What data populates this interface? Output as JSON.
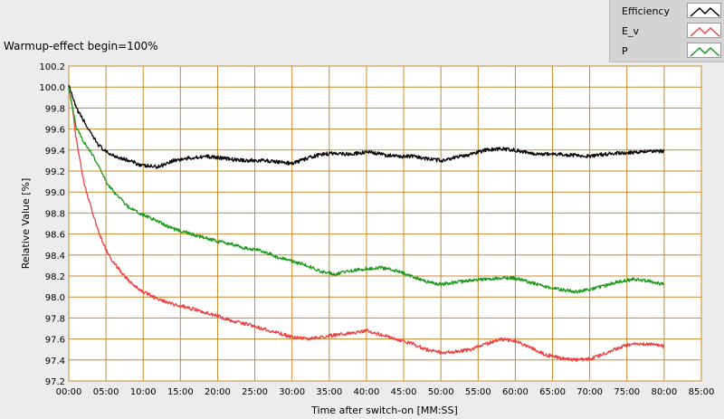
{
  "chart_data": {
    "type": "line",
    "title": "Warmup-effect begin=100%",
    "xlabel": "Time after switch-on [MM:SS]",
    "ylabel": "Relative Value [%]",
    "xlim": [
      0,
      85
    ],
    "ylim": [
      97.2,
      100.2
    ],
    "x_ticks": [
      "00:00",
      "05:00",
      "10:00",
      "15:00",
      "20:00",
      "25:00",
      "30:00",
      "35:00",
      "40:00",
      "45:00",
      "50:00",
      "55:00",
      "60:00",
      "65:00",
      "70:00",
      "75:00",
      "80:00",
      "85:00"
    ],
    "y_ticks": [
      "97.2",
      "97.4",
      "97.6",
      "97.8",
      "98.0",
      "98.2",
      "98.4",
      "98.6",
      "98.8",
      "99.0",
      "99.2",
      "99.4",
      "99.6",
      "99.8",
      "100.0",
      "100.2"
    ],
    "grid": true,
    "legend_position": "top-right",
    "series": [
      {
        "name": "Efficiency",
        "color": "#000000",
        "x": [
          0,
          0.5,
          1,
          2,
          3,
          4,
          5,
          6,
          8,
          10,
          12,
          14,
          16,
          18,
          20,
          22,
          24,
          26,
          28,
          30,
          32,
          34,
          36,
          38,
          40,
          42,
          44,
          46,
          48,
          50,
          52,
          54,
          56,
          58,
          60,
          62,
          64,
          66,
          68,
          70,
          72,
          74,
          76,
          78,
          80
        ],
        "y": [
          100.02,
          99.9,
          99.8,
          99.68,
          99.55,
          99.45,
          99.38,
          99.35,
          99.3,
          99.25,
          99.24,
          99.3,
          99.32,
          99.34,
          99.33,
          99.31,
          99.3,
          99.3,
          99.29,
          99.27,
          99.32,
          99.36,
          99.37,
          99.36,
          99.38,
          99.36,
          99.34,
          99.34,
          99.32,
          99.3,
          99.33,
          99.36,
          99.4,
          99.41,
          99.4,
          99.37,
          99.36,
          99.36,
          99.35,
          99.34,
          99.36,
          99.37,
          99.38,
          99.39,
          99.39
        ]
      },
      {
        "name": "E_v",
        "color": "#ee4040",
        "x": [
          0,
          0.5,
          1,
          2,
          3,
          4,
          5,
          6,
          7,
          8,
          9,
          10,
          12,
          14,
          16,
          18,
          20,
          22,
          24,
          26,
          28,
          30,
          32,
          34,
          36,
          38,
          40,
          42,
          44,
          46,
          48,
          50,
          52,
          54,
          56,
          58,
          60,
          62,
          64,
          66,
          68,
          70,
          72,
          74,
          76,
          78,
          80
        ],
        "y": [
          100.0,
          99.8,
          99.5,
          99.1,
          98.85,
          98.62,
          98.45,
          98.33,
          98.24,
          98.16,
          98.1,
          98.05,
          97.98,
          97.93,
          97.9,
          97.86,
          97.82,
          97.77,
          97.74,
          97.7,
          97.66,
          97.62,
          97.6,
          97.62,
          97.64,
          97.66,
          97.68,
          97.64,
          97.6,
          97.56,
          97.5,
          97.47,
          97.48,
          97.5,
          97.55,
          97.6,
          97.58,
          97.52,
          97.45,
          97.42,
          97.4,
          97.41,
          97.46,
          97.52,
          97.56,
          97.55,
          97.53
        ]
      },
      {
        "name": "P",
        "color": "#1a9a1a",
        "x": [
          0,
          0.5,
          1,
          2,
          3,
          4,
          5,
          6,
          8,
          10,
          12,
          14,
          16,
          18,
          20,
          22,
          24,
          26,
          28,
          30,
          32,
          34,
          36,
          38,
          40,
          42,
          44,
          46,
          48,
          50,
          52,
          54,
          56,
          58,
          60,
          62,
          64,
          66,
          68,
          70,
          72,
          74,
          76,
          78,
          80
        ],
        "y": [
          100.0,
          99.8,
          99.62,
          99.48,
          99.38,
          99.25,
          99.1,
          99.0,
          98.86,
          98.78,
          98.72,
          98.65,
          98.61,
          98.57,
          98.53,
          98.5,
          98.46,
          98.44,
          98.38,
          98.34,
          98.3,
          98.24,
          98.22,
          98.25,
          98.27,
          98.28,
          98.25,
          98.2,
          98.15,
          98.12,
          98.14,
          98.16,
          98.17,
          98.18,
          98.18,
          98.14,
          98.1,
          98.07,
          98.05,
          98.07,
          98.11,
          98.15,
          98.17,
          98.15,
          98.12
        ]
      }
    ]
  }
}
